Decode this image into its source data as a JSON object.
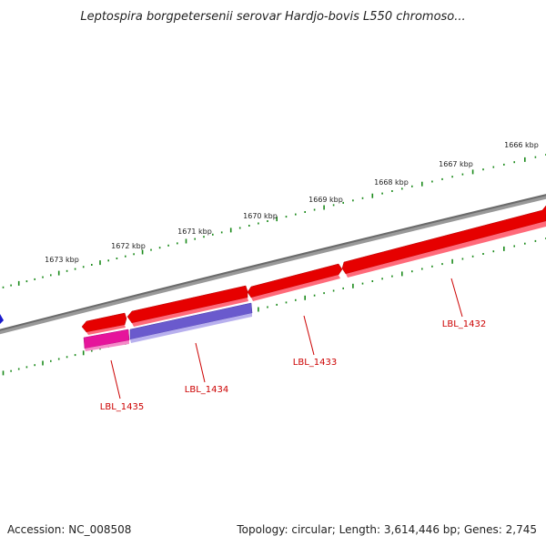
{
  "title": "Leptospira borgpetersenii serovar Hardjo-bovis L550 chromoso...",
  "footer": {
    "accession": "Accession: NC_008508",
    "summary": "Topology: circular; Length: 3,614,446 bp; Genes: 2,745"
  },
  "colors": {
    "backbone": "#808080",
    "tick": "#1a8a1a",
    "gene_forward": "#e60000",
    "gene_forward_light": "#ff6a7a",
    "gene_pink": "#e6149b",
    "gene_purple": "#6a5acd",
    "label": "#cc0000",
    "marker": "#1a1acc"
  },
  "kbp_labels": [
    "1666 kbp",
    "1667 kbp",
    "1668 kbp",
    "1669 kbp",
    "1670 kbp",
    "1671 kbp",
    "1672 kbp",
    "1673 kbp"
  ],
  "genes": [
    {
      "label": "LBL_1432"
    },
    {
      "label": "LBL_1433"
    },
    {
      "label": "LBL_1434"
    },
    {
      "label": "LBL_1435"
    }
  ]
}
